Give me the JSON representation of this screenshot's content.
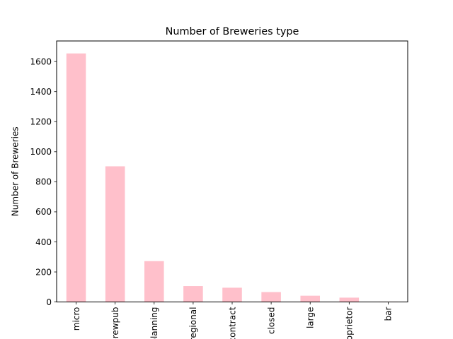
{
  "chart_data": {
    "type": "bar",
    "title": "Number of Breweries type",
    "xlabel": "",
    "ylabel": "Number of Breweries",
    "categories": [
      "micro",
      "brewpub",
      "planning",
      "regional",
      "contract",
      "closed",
      "large",
      "proprietor",
      "bar"
    ],
    "values": [
      1654,
      903,
      272,
      106,
      95,
      66,
      42,
      29,
      2
    ],
    "ylim": [
      0,
      1737
    ],
    "yticks": [
      0,
      200,
      400,
      600,
      800,
      1000,
      1200,
      1400,
      1600
    ],
    "bar_color": "#ffc0cb",
    "grid": false
  }
}
